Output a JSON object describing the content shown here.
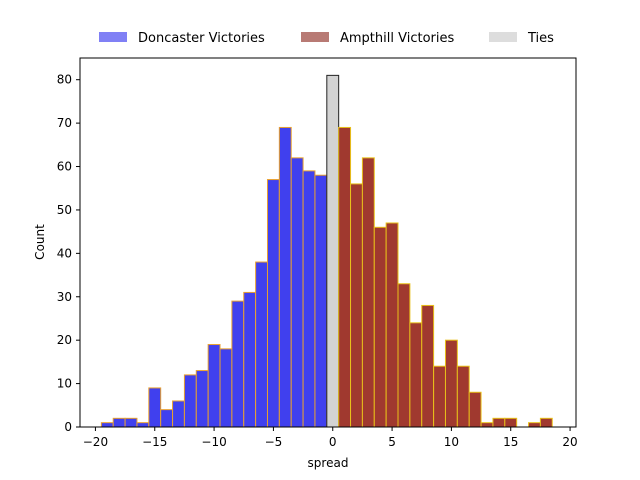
{
  "chart_data": {
    "type": "bar",
    "xlabel": "spread",
    "ylabel": "Count",
    "xlim": [
      -21.3,
      20.5
    ],
    "ylim": [
      0,
      85
    ],
    "xticks": [
      -20,
      -15,
      -10,
      -5,
      0,
      5,
      10,
      15,
      20
    ],
    "yticks": [
      0,
      10,
      20,
      30,
      40,
      50,
      60,
      70,
      80
    ],
    "bin_width": 1,
    "legend_position": "top-center",
    "colors": {
      "doncaster": "#4040ee",
      "ampthill": "#a0392f",
      "ampthill_edge": "#e8c01a",
      "doncaster_edge": "#e8a030",
      "ties": "#d3d3d3",
      "ties_edge": "#222222"
    },
    "series": [
      {
        "name": "Doncaster Victories",
        "legend_color": "#8080f5",
        "bins": [
          {
            "x": -19,
            "value": 1
          },
          {
            "x": -18,
            "value": 2
          },
          {
            "x": -17,
            "value": 2
          },
          {
            "x": -16,
            "value": 1
          },
          {
            "x": -15,
            "value": 9
          },
          {
            "x": -14,
            "value": 4
          },
          {
            "x": -13,
            "value": 6
          },
          {
            "x": -12,
            "value": 12
          },
          {
            "x": -11,
            "value": 13
          },
          {
            "x": -10,
            "value": 19
          },
          {
            "x": -9,
            "value": 18
          },
          {
            "x": -8,
            "value": 29
          },
          {
            "x": -7,
            "value": 31
          },
          {
            "x": -6,
            "value": 38
          },
          {
            "x": -5,
            "value": 57
          },
          {
            "x": -4,
            "value": 69
          },
          {
            "x": -3,
            "value": 62
          },
          {
            "x": -2,
            "value": 59
          },
          {
            "x": -1,
            "value": 58
          }
        ]
      },
      {
        "name": "Ties",
        "legend_color": "#dddddd",
        "bins": [
          {
            "x": 0,
            "value": 81
          }
        ]
      },
      {
        "name": "Ampthill Victories",
        "legend_color": "#b87a74",
        "bins": [
          {
            "x": 1,
            "value": 69
          },
          {
            "x": 2,
            "value": 56
          },
          {
            "x": 3,
            "value": 62
          },
          {
            "x": 4,
            "value": 46
          },
          {
            "x": 5,
            "value": 47
          },
          {
            "x": 6,
            "value": 33
          },
          {
            "x": 7,
            "value": 24
          },
          {
            "x": 8,
            "value": 28
          },
          {
            "x": 9,
            "value": 14
          },
          {
            "x": 10,
            "value": 20
          },
          {
            "x": 11,
            "value": 14
          },
          {
            "x": 12,
            "value": 8
          },
          {
            "x": 13,
            "value": 1
          },
          {
            "x": 14,
            "value": 2
          },
          {
            "x": 15,
            "value": 2
          },
          {
            "x": 16,
            "value": 0
          },
          {
            "x": 17,
            "value": 1
          },
          {
            "x": 18,
            "value": 2
          }
        ]
      }
    ],
    "legend": [
      {
        "label": "Doncaster Victories",
        "color": "#8080f5"
      },
      {
        "label": "Ampthill Victories",
        "color": "#b87a74"
      },
      {
        "label": "Ties",
        "color": "#dddddd"
      }
    ]
  }
}
